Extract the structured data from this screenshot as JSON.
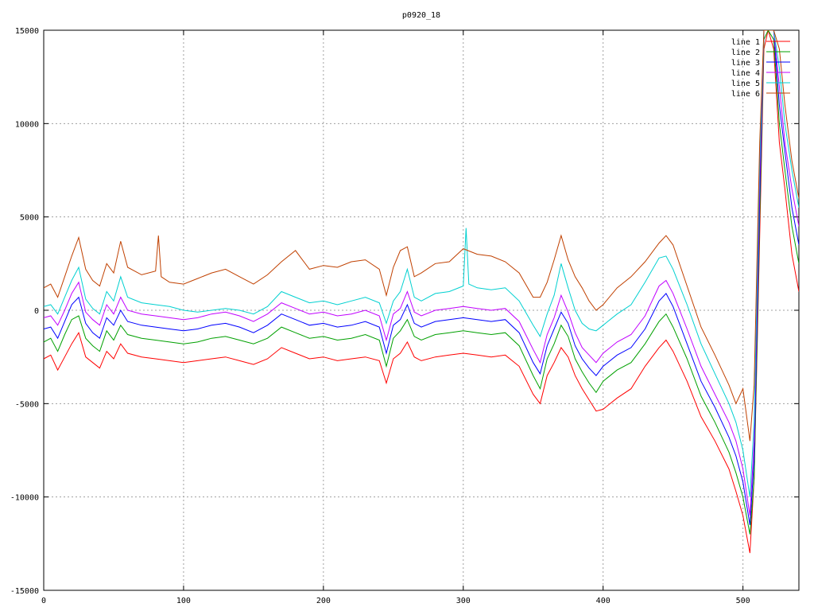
{
  "chart_data": {
    "type": "line",
    "title": "p0920_18",
    "xlabel": "",
    "ylabel": "",
    "xlim": [
      0,
      540
    ],
    "ylim": [
      -15000,
      15000
    ],
    "xticks": [
      0,
      100,
      200,
      300,
      400,
      500
    ],
    "yticks": [
      -15000,
      -10000,
      -5000,
      0,
      5000,
      10000,
      15000
    ],
    "grid": true,
    "legend_position": "top-right",
    "series": [
      {
        "name": "line 1",
        "color": "#ff0000",
        "x": [
          0,
          5,
          10,
          15,
          20,
          25,
          30,
          35,
          40,
          45,
          50,
          55,
          60,
          70,
          80,
          90,
          100,
          110,
          120,
          130,
          140,
          150,
          160,
          170,
          180,
          190,
          200,
          210,
          220,
          230,
          240,
          245,
          250,
          255,
          260,
          265,
          270,
          280,
          290,
          300,
          310,
          320,
          330,
          340,
          350,
          355,
          360,
          365,
          370,
          375,
          380,
          385,
          390,
          395,
          400,
          410,
          420,
          430,
          440,
          445,
          450,
          460,
          470,
          480,
          490,
          495,
          500,
          505,
          508,
          512,
          515,
          518,
          522,
          526,
          530,
          535,
          540
        ],
        "y": [
          -2600,
          -2400,
          -3200,
          -2500,
          -1800,
          -1200,
          -2500,
          -2800,
          -3100,
          -2200,
          -2600,
          -1800,
          -2300,
          -2500,
          -2600,
          -2700,
          -2800,
          -2700,
          -2600,
          -2500,
          -2700,
          -2900,
          -2600,
          -2000,
          -2300,
          -2600,
          -2500,
          -2700,
          -2600,
          -2500,
          -2700,
          -3900,
          -2600,
          -2300,
          -1700,
          -2500,
          -2700,
          -2500,
          -2400,
          -2300,
          -2400,
          -2500,
          -2400,
          -3000,
          -4500,
          -5000,
          -3500,
          -2800,
          -2000,
          -2500,
          -3500,
          -4200,
          -4800,
          -5400,
          -5300,
          -4700,
          -4200,
          -3000,
          -2000,
          -1600,
          -2200,
          -3800,
          -5700,
          -7000,
          -8500,
          -9700,
          -11000,
          -13000,
          -9000,
          4000,
          14000,
          15000,
          14000,
          9000,
          6500,
          3000,
          1000
        ]
      },
      {
        "name": "line 2",
        "color": "#00a000",
        "x": [
          0,
          5,
          10,
          15,
          20,
          25,
          30,
          35,
          40,
          45,
          50,
          55,
          60,
          70,
          80,
          90,
          100,
          110,
          120,
          130,
          140,
          150,
          160,
          170,
          180,
          190,
          200,
          210,
          220,
          230,
          240,
          245,
          250,
          255,
          260,
          265,
          270,
          280,
          290,
          300,
          310,
          320,
          330,
          340,
          350,
          355,
          360,
          365,
          370,
          375,
          380,
          385,
          390,
          395,
          400,
          410,
          420,
          430,
          440,
          445,
          450,
          460,
          470,
          480,
          490,
          495,
          500,
          505,
          508,
          512,
          515,
          518,
          522,
          526,
          530,
          535,
          540
        ],
        "y": [
          -1700,
          -1500,
          -2200,
          -1300,
          -500,
          -300,
          -1500,
          -1900,
          -2200,
          -1100,
          -1600,
          -800,
          -1300,
          -1500,
          -1600,
          -1700,
          -1800,
          -1700,
          -1500,
          -1400,
          -1600,
          -1800,
          -1500,
          -900,
          -1200,
          -1500,
          -1400,
          -1600,
          -1500,
          -1300,
          -1600,
          -3000,
          -1500,
          -1100,
          -500,
          -1400,
          -1600,
          -1300,
          -1200,
          -1100,
          -1200,
          -1300,
          -1200,
          -1900,
          -3500,
          -4200,
          -2600,
          -1800,
          -800,
          -1400,
          -2600,
          -3300,
          -3900,
          -4400,
          -3800,
          -3200,
          -2800,
          -1800,
          -600,
          -200,
          -900,
          -2600,
          -4600,
          -6000,
          -7600,
          -8700,
          -10000,
          -12000,
          -9000,
          5000,
          14500,
          15000,
          14500,
          10000,
          7500,
          4500,
          2500
        ]
      },
      {
        "name": "line 3",
        "color": "#0000ff",
        "x": [
          0,
          5,
          10,
          15,
          20,
          25,
          30,
          35,
          40,
          45,
          50,
          55,
          60,
          70,
          80,
          90,
          100,
          110,
          120,
          130,
          140,
          150,
          160,
          170,
          180,
          190,
          200,
          210,
          220,
          230,
          240,
          245,
          250,
          255,
          260,
          265,
          270,
          280,
          290,
          300,
          310,
          320,
          330,
          340,
          350,
          355,
          360,
          365,
          370,
          375,
          380,
          385,
          390,
          395,
          400,
          410,
          420,
          430,
          440,
          445,
          450,
          460,
          470,
          480,
          490,
          495,
          500,
          505,
          508,
          512,
          515,
          518,
          522,
          526,
          530,
          535,
          540
        ],
        "y": [
          -1000,
          -900,
          -1500,
          -600,
          300,
          700,
          -700,
          -1200,
          -1500,
          -400,
          -800,
          0,
          -600,
          -800,
          -900,
          -1000,
          -1100,
          -1000,
          -800,
          -700,
          -900,
          -1200,
          -800,
          -200,
          -500,
          -800,
          -700,
          -900,
          -800,
          -600,
          -900,
          -2300,
          -800,
          -500,
          300,
          -700,
          -900,
          -600,
          -500,
          -400,
          -500,
          -600,
          -500,
          -1200,
          -2800,
          -3400,
          -1900,
          -1000,
          -100,
          -700,
          -1900,
          -2600,
          -3100,
          -3500,
          -3000,
          -2400,
          -2000,
          -1000,
          500,
          900,
          200,
          -1800,
          -3800,
          -5200,
          -6800,
          -7800,
          -9200,
          -11500,
          -8000,
          6000,
          15000,
          15000,
          15000,
          11000,
          8500,
          5500,
          3500
        ]
      },
      {
        "name": "line 4",
        "color": "#c000ff",
        "x": [
          0,
          5,
          10,
          15,
          20,
          25,
          30,
          35,
          40,
          45,
          50,
          55,
          60,
          70,
          80,
          90,
          100,
          110,
          120,
          130,
          140,
          150,
          160,
          170,
          180,
          190,
          200,
          210,
          220,
          230,
          240,
          245,
          250,
          255,
          260,
          265,
          270,
          280,
          290,
          300,
          310,
          320,
          330,
          340,
          350,
          355,
          360,
          365,
          370,
          375,
          380,
          385,
          390,
          395,
          400,
          410,
          420,
          430,
          440,
          445,
          450,
          460,
          470,
          480,
          490,
          495,
          500,
          505,
          508,
          512,
          515,
          518,
          522,
          526,
          530,
          535,
          540
        ],
        "y": [
          -400,
          -300,
          -800,
          0,
          900,
          1500,
          -100,
          -500,
          -800,
          300,
          -200,
          700,
          0,
          -200,
          -300,
          -400,
          -500,
          -400,
          -200,
          -100,
          -300,
          -600,
          -200,
          400,
          100,
          -200,
          -100,
          -300,
          -200,
          0,
          -300,
          -1600,
          -200,
          100,
          1000,
          -100,
          -300,
          0,
          100,
          200,
          100,
          0,
          100,
          -600,
          -2100,
          -2800,
          -1300,
          -400,
          800,
          -100,
          -1200,
          -2000,
          -2400,
          -2800,
          -2300,
          -1700,
          -1300,
          -300,
          1300,
          1600,
          900,
          -1000,
          -3000,
          -4500,
          -6000,
          -7000,
          -8500,
          -11000,
          -7000,
          7000,
          15000,
          15000,
          15000,
          12000,
          9000,
          6500,
          4500
        ]
      },
      {
        "name": "line 5",
        "color": "#00d0d0",
        "x": [
          0,
          5,
          10,
          15,
          20,
          25,
          30,
          35,
          40,
          45,
          50,
          55,
          60,
          70,
          80,
          90,
          100,
          110,
          120,
          130,
          140,
          150,
          160,
          170,
          180,
          190,
          200,
          210,
          220,
          230,
          240,
          245,
          250,
          255,
          260,
          265,
          270,
          280,
          290,
          300,
          302,
          304,
          310,
          320,
          330,
          340,
          350,
          355,
          360,
          365,
          370,
          375,
          380,
          385,
          390,
          395,
          400,
          410,
          420,
          430,
          440,
          445,
          450,
          460,
          470,
          480,
          490,
          495,
          500,
          505,
          508,
          512,
          515,
          518,
          522,
          526,
          530,
          535,
          540
        ],
        "y": [
          200,
          300,
          -200,
          700,
          1600,
          2300,
          600,
          100,
          -200,
          1000,
          500,
          1800,
          700,
          400,
          300,
          200,
          0,
          -100,
          0,
          100,
          0,
          -200,
          200,
          1000,
          700,
          400,
          500,
          300,
          500,
          700,
          400,
          -700,
          500,
          1000,
          2200,
          700,
          500,
          900,
          1000,
          1300,
          4400,
          1400,
          1200,
          1100,
          1200,
          500,
          -800,
          -1400,
          -200,
          800,
          2500,
          1200,
          0,
          -700,
          -1000,
          -1100,
          -800,
          -200,
          300,
          1500,
          2800,
          2900,
          2200,
          300,
          -1800,
          -3400,
          -5000,
          -6000,
          -7500,
          -10000,
          -6000,
          8000,
          15000,
          15000,
          15000,
          13000,
          10000,
          7500,
          5500
        ]
      },
      {
        "name": "line 6",
        "color": "#c04000",
        "x": [
          0,
          5,
          10,
          15,
          20,
          25,
          30,
          35,
          40,
          45,
          50,
          55,
          60,
          70,
          80,
          82,
          84,
          90,
          100,
          110,
          120,
          130,
          140,
          150,
          160,
          170,
          180,
          190,
          200,
          210,
          220,
          230,
          240,
          245,
          250,
          255,
          260,
          265,
          270,
          280,
          290,
          300,
          310,
          320,
          330,
          340,
          350,
          355,
          360,
          365,
          370,
          375,
          380,
          385,
          390,
          395,
          400,
          410,
          420,
          430,
          440,
          445,
          450,
          460,
          470,
          480,
          490,
          495,
          500,
          505,
          508,
          512,
          515,
          518,
          522,
          526,
          530,
          535,
          540
        ],
        "y": [
          1200,
          1400,
          700,
          1800,
          2900,
          3900,
          2200,
          1600,
          1300,
          2500,
          2000,
          3700,
          2300,
          1900,
          2100,
          4000,
          1800,
          1500,
          1400,
          1700,
          2000,
          2200,
          1800,
          1400,
          1900,
          2600,
          3200,
          2200,
          2400,
          2300,
          2600,
          2700,
          2200,
          800,
          2300,
          3200,
          3400,
          1800,
          2000,
          2500,
          2600,
          3300,
          3000,
          2900,
          2600,
          2000,
          700,
          700,
          1500,
          2700,
          4000,
          2700,
          1800,
          1200,
          500,
          0,
          300,
          1200,
          1800,
          2600,
          3600,
          4000,
          3500,
          1300,
          -900,
          -2400,
          -4000,
          -5000,
          -4200,
          -7000,
          -4000,
          9000,
          15000,
          15000,
          15000,
          14000,
          11000,
          8000,
          6000
        ]
      }
    ]
  }
}
